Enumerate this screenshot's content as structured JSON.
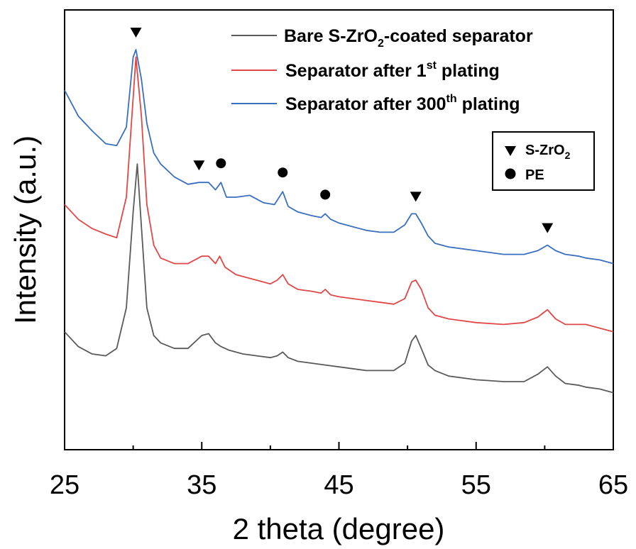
{
  "chart_data": {
    "type": "line",
    "xlabel": "2 theta (degree)",
    "ylabel": "Intensity (a.u.)",
    "xlim": [
      25,
      65
    ],
    "xticks": [
      "25",
      "35",
      "45",
      "55",
      "65"
    ],
    "y_ticks_shown": false,
    "grid": false,
    "legend_position": "top-right",
    "series": [
      {
        "name": "Bare S-ZrO2-coated separator",
        "legend_parts": {
          "pre": "Bare S-ZrO",
          "sub": "2",
          "post": "-coated separator"
        },
        "color": "#5a5a5a",
        "x": [
          25,
          26,
          27,
          28,
          28.8,
          29.5,
          30.0,
          30.3,
          30.6,
          31.0,
          31.5,
          32.0,
          33.0,
          34.0,
          35.0,
          35.5,
          36.0,
          36.4,
          37.0,
          38.0,
          39.0,
          40.0,
          40.5,
          40.9,
          41.3,
          42.0,
          43.0,
          44.0,
          45.0,
          46.0,
          47.0,
          48.0,
          49.0,
          49.8,
          50.3,
          50.6,
          51.0,
          51.5,
          52.0,
          53.0,
          55.0,
          57.0,
          58.5,
          59.5,
          60.2,
          60.8,
          61.5,
          62.5,
          63.0,
          64.0,
          65.0
        ],
        "y": [
          0.235,
          0.195,
          0.175,
          0.17,
          0.19,
          0.3,
          0.56,
          0.69,
          0.52,
          0.3,
          0.225,
          0.205,
          0.19,
          0.19,
          0.225,
          0.23,
          0.205,
          0.195,
          0.185,
          0.175,
          0.17,
          0.165,
          0.17,
          0.18,
          0.165,
          0.155,
          0.15,
          0.145,
          0.14,
          0.135,
          0.13,
          0.13,
          0.13,
          0.15,
          0.21,
          0.225,
          0.19,
          0.145,
          0.13,
          0.115,
          0.105,
          0.1,
          0.1,
          0.12,
          0.14,
          0.115,
          0.095,
          0.09,
          0.085,
          0.08,
          0.07
        ]
      },
      {
        "name": "Separator after 1st plating",
        "legend_parts": {
          "pre": "Separator after 1",
          "sup": "st",
          "post": " plating"
        },
        "color": "#e04848",
        "x": [
          25,
          26,
          27,
          28,
          28.8,
          29.5,
          30.0,
          30.2,
          30.6,
          31.0,
          31.5,
          32.0,
          33.0,
          34.0,
          35.0,
          35.5,
          36.0,
          36.3,
          36.7,
          37.5,
          39.0,
          40.0,
          40.5,
          40.9,
          41.3,
          42.0,
          43.0,
          43.7,
          44.0,
          44.4,
          45.0,
          46.0,
          47.0,
          48.0,
          49.0,
          49.8,
          50.3,
          50.6,
          51.0,
          51.5,
          52.0,
          53.0,
          55.0,
          57.0,
          58.5,
          59.5,
          60.2,
          60.8,
          61.5,
          62.5,
          63.0,
          64.0,
          65.0
        ],
        "y": [
          0.58,
          0.54,
          0.515,
          0.5,
          0.49,
          0.6,
          0.87,
          0.98,
          0.82,
          0.58,
          0.47,
          0.435,
          0.42,
          0.42,
          0.44,
          0.44,
          0.42,
          0.44,
          0.41,
          0.39,
          0.375,
          0.365,
          0.375,
          0.39,
          0.365,
          0.35,
          0.345,
          0.34,
          0.35,
          0.335,
          0.33,
          0.325,
          0.32,
          0.315,
          0.31,
          0.325,
          0.37,
          0.375,
          0.35,
          0.3,
          0.28,
          0.27,
          0.26,
          0.255,
          0.26,
          0.275,
          0.295,
          0.27,
          0.255,
          0.255,
          0.255,
          0.245,
          0.235
        ]
      },
      {
        "name": "Separator after 300th plating",
        "legend_parts": {
          "pre": "Separator after 300",
          "sup": "th",
          "post": " plating"
        },
        "color": "#3a6fc0",
        "x": [
          25,
          26,
          27,
          28,
          28.8,
          29.5,
          30.0,
          30.2,
          30.6,
          31.0,
          31.5,
          32.0,
          33.0,
          34.0,
          34.8,
          35.5,
          36.0,
          36.4,
          36.8,
          37.5,
          38.5,
          39.5,
          40.3,
          40.9,
          41.3,
          42.0,
          43.0,
          43.7,
          44.0,
          44.4,
          45.0,
          46.0,
          47.0,
          48.0,
          49.0,
          49.8,
          50.3,
          50.6,
          51.0,
          51.5,
          52.0,
          53.0,
          55.0,
          57.0,
          58.5,
          59.5,
          60.2,
          60.8,
          61.5,
          62.5,
          63.0,
          64.0,
          65.0
        ],
        "y": [
          0.89,
          0.82,
          0.78,
          0.745,
          0.74,
          0.79,
          0.98,
          1.0,
          0.92,
          0.8,
          0.72,
          0.69,
          0.655,
          0.635,
          0.64,
          0.64,
          0.62,
          0.64,
          0.6,
          0.6,
          0.605,
          0.585,
          0.58,
          0.615,
          0.575,
          0.56,
          0.55,
          0.545,
          0.555,
          0.54,
          0.53,
          0.52,
          0.51,
          0.505,
          0.505,
          0.525,
          0.555,
          0.555,
          0.53,
          0.495,
          0.475,
          0.465,
          0.455,
          0.445,
          0.445,
          0.455,
          0.47,
          0.455,
          0.445,
          0.44,
          0.435,
          0.43,
          0.42
        ]
      }
    ],
    "annotations": {
      "triangles_x": [
        30.2,
        34.8,
        50.6,
        60.2
      ],
      "circles_x": [
        36.4,
        40.9,
        44.0
      ]
    },
    "marker_legend": [
      {
        "symbol": "triangle",
        "label_pre": "S-ZrO",
        "label_sub": "2"
      },
      {
        "symbol": "circle",
        "label_pre": "PE",
        "label_sub": ""
      }
    ]
  }
}
